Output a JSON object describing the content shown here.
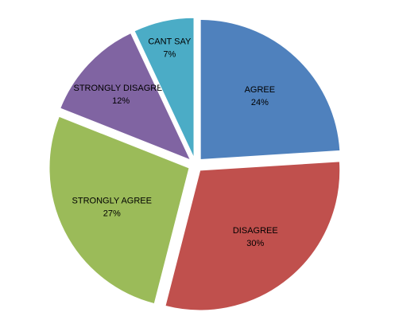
{
  "chart_data": {
    "type": "pie",
    "categories": [
      "AGREE",
      "DISAGREE",
      "STRONGLY AGREE",
      "STRONGLY DISAGREE",
      "CANT SAY"
    ],
    "values": [
      24,
      30,
      27,
      12,
      7
    ],
    "value_labels": [
      "24%",
      "30%",
      "27%",
      "12%",
      "7%"
    ],
    "colors": [
      "#4f81bd",
      "#c0504d",
      "#9bbb59",
      "#8064a2",
      "#4bacc6"
    ]
  }
}
